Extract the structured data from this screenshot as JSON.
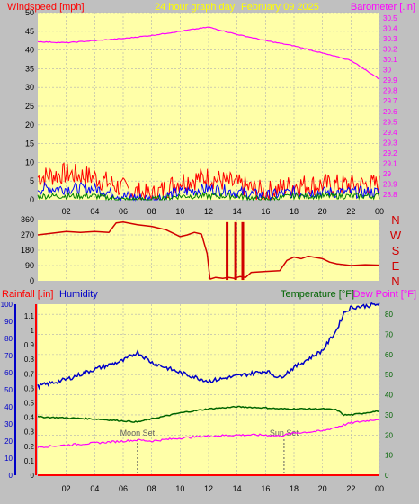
{
  "header": {
    "left_label": "Windspeed [mph]",
    "center_label": "24 hour graph day",
    "date_label": "February 09 2025",
    "right_label": "Barometer [.in]"
  },
  "colors": {
    "frame": "#c0c0c0",
    "plot_bg": "#ffffa8",
    "grid": "#b0b0b0",
    "wind_high": "#ff0000",
    "wind_avg": "#0000ff",
    "wind_low": "#008000",
    "barometer": "#ff00ff",
    "direction": "#d00000",
    "rainfall": "#ff0000",
    "humidity": "#0000c8",
    "temperature": "#006400",
    "dew_point": "#ff00ff",
    "left_axis_red": "#ff0000",
    "right_axis_magenta": "#ff00ff"
  },
  "hour_ticks": [
    "02",
    "04",
    "06",
    "08",
    "10",
    "12",
    "14",
    "16",
    "18",
    "20",
    "22",
    "00"
  ],
  "chart_data": [
    {
      "type": "line",
      "name": "wind-barometer",
      "title": "",
      "xlabel": "",
      "ylabel": "Windspeed [mph]",
      "ylabel_right": "Barometer [.in]",
      "x_ticks": [
        "02",
        "04",
        "06",
        "08",
        "10",
        "12",
        "14",
        "16",
        "18",
        "20",
        "22",
        "00"
      ],
      "y_left_ticks": [
        0,
        5,
        10,
        15,
        20,
        25,
        30,
        35,
        40,
        45,
        50
      ],
      "ylim_left": [
        0,
        50
      ],
      "y_right_ticks": [
        28.8,
        28.9,
        29.0,
        29.1,
        29.2,
        29.3,
        29.4,
        29.5,
        29.6,
        29.7,
        29.8,
        29.9,
        30.0,
        30.1,
        30.2,
        30.3,
        30.4,
        30.5
      ],
      "y_right_tick_labels": [
        "28.8",
        "28.9",
        "29",
        "29.1",
        "29.2",
        "29.3",
        "29.4",
        "29.5",
        "29.6",
        "29.7",
        "29.8",
        "29.9",
        "30",
        "30.1",
        "30.2",
        "30.3",
        "30.4",
        "30.5"
      ],
      "ylim_right": [
        28.75,
        30.55
      ],
      "x": [
        0,
        2,
        4,
        6,
        8,
        10,
        12,
        14,
        16,
        18,
        20,
        22,
        24
      ],
      "series": [
        {
          "key": "barometer",
          "values": [
            30.27,
            30.26,
            30.28,
            30.3,
            30.33,
            30.37,
            30.41,
            30.34,
            30.28,
            30.23,
            30.16,
            30.09,
            29.91
          ]
        },
        {
          "key": "wind_high",
          "values": [
            6,
            7,
            6,
            3,
            1,
            5,
            6,
            4,
            2,
            4,
            4,
            4,
            4
          ]
        },
        {
          "key": "wind_avg",
          "values": [
            3,
            3,
            3,
            1,
            0,
            2,
            3,
            2,
            1,
            2,
            2,
            2,
            2
          ]
        },
        {
          "key": "wind_low",
          "values": [
            1,
            1,
            1,
            0,
            0,
            1,
            1,
            1,
            0,
            1,
            1,
            1,
            1
          ]
        }
      ],
      "grid": true
    },
    {
      "type": "line",
      "name": "wind-direction",
      "title": "",
      "xlabel": "",
      "ylabel": "",
      "y_left_ticks": [
        0,
        90,
        180,
        270,
        360
      ],
      "ylim": [
        0,
        360
      ],
      "y_right_labels": [
        "N",
        "W",
        "S",
        "E",
        "N"
      ],
      "x_ticks": [
        "02",
        "04",
        "06",
        "08",
        "10",
        "12",
        "14",
        "16",
        "18",
        "20",
        "22",
        "00"
      ],
      "x": [
        0,
        1,
        2,
        3,
        4,
        5,
        5.5,
        6,
        7,
        8,
        9,
        9.5,
        10,
        10.5,
        11,
        11.5,
        11.9,
        12.1,
        12.5,
        13,
        13.4,
        13.8,
        14.2,
        14.6,
        15,
        16,
        17,
        17.5,
        18,
        18.5,
        19,
        20,
        20.5,
        21,
        22,
        23,
        24
      ],
      "values": [
        270,
        280,
        290,
        285,
        290,
        285,
        340,
        345,
        330,
        320,
        300,
        280,
        260,
        270,
        285,
        275,
        160,
        10,
        20,
        15,
        20,
        15,
        25,
        20,
        50,
        55,
        60,
        120,
        140,
        130,
        145,
        130,
        110,
        100,
        90,
        95,
        92
      ],
      "grid": true
    },
    {
      "type": "line",
      "name": "rain-humidity-temp",
      "title": "",
      "xlabel": "",
      "ylabel": "Rainfall [.in]",
      "ylabel_secondary": "Humidity",
      "ylabel_right": "Temperature [°F]",
      "ylabel_right_secondary": "Dew Point [°F]",
      "x_ticks": [
        "02",
        "04",
        "06",
        "08",
        "10",
        "12",
        "14",
        "16",
        "18",
        "20",
        "22",
        "00"
      ],
      "humidity_ticks": [
        0,
        10,
        20,
        30,
        40,
        50,
        60,
        70,
        80,
        90,
        100
      ],
      "humidity_lim": [
        0,
        100
      ],
      "rain_ticks": [
        0,
        0.1,
        0.2,
        0.3,
        0.4,
        0.5,
        0.6,
        0.7,
        0.8,
        0.9,
        1,
        1.1
      ],
      "rain_tick_labels": [
        "0",
        "0.1",
        "0.2",
        "0.3",
        "0.4",
        "0.5",
        "0.6",
        "0.7",
        "0.8",
        "0.9",
        "1",
        "1.1"
      ],
      "rain_lim": [
        0,
        1.18
      ],
      "temp_ticks": [
        0,
        10,
        20,
        30,
        40,
        50,
        60,
        70,
        80
      ],
      "temp_lim": [
        0,
        85
      ],
      "x": [
        0,
        2,
        4,
        6,
        7,
        8,
        10,
        12,
        14,
        16,
        17,
        18,
        19,
        20,
        21,
        21.5,
        22,
        23,
        24
      ],
      "series": [
        {
          "key": "humidity",
          "values": [
            52,
            56,
            62,
            67,
            72,
            66,
            60,
            55,
            58,
            61,
            57,
            63,
            68,
            73,
            85,
            95,
            98,
            99,
            100
          ]
        },
        {
          "key": "temperature",
          "values": [
            29,
            28.5,
            28,
            27,
            26.5,
            28,
            31,
            33,
            34,
            33.5,
            33,
            33,
            33,
            33,
            32.5,
            30,
            30,
            31,
            32
          ]
        },
        {
          "key": "dew_point",
          "values": [
            14,
            15,
            16,
            17,
            17.5,
            17,
            18.5,
            19.5,
            20,
            20,
            19.5,
            21,
            21.5,
            22,
            24,
            25,
            26,
            27,
            28
          ]
        },
        {
          "key": "rainfall",
          "values": [
            0,
            0,
            0,
            0,
            0,
            0,
            0,
            0,
            0,
            0,
            0,
            0,
            0,
            0,
            0,
            0,
            0,
            0,
            0
          ]
        }
      ],
      "annotations": [
        {
          "label": "Moon Set",
          "x": 7
        },
        {
          "label": "Sun Set",
          "x": 17.3
        }
      ],
      "grid": true
    }
  ],
  "panel3_labels": {
    "rainfall": "Rainfall [.in]",
    "humidity": "Humidity",
    "temperature": "Temperature [°F]",
    "dew_point": "Dew Point [°F]"
  }
}
